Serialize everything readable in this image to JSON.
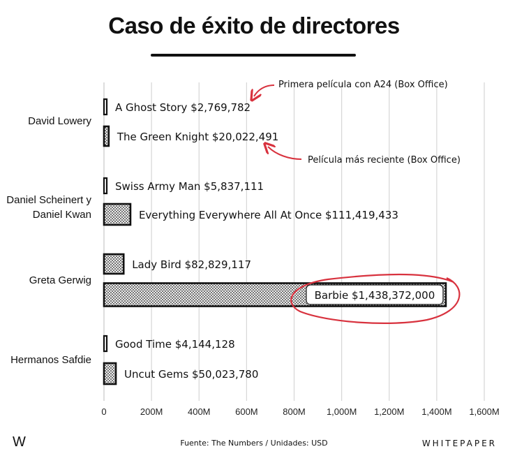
{
  "header": {
    "title": "Caso de éxito de directores"
  },
  "chart_data": {
    "type": "bar",
    "orientation": "horizontal",
    "groups": [
      "David Lowery",
      "Daniel Scheinert y Daniel Kwan",
      "Greta Gerwig",
      "Hermanos Safdie"
    ],
    "bars": [
      {
        "group": "David Lowery",
        "film": "A Ghost Story",
        "value": 2769782,
        "label": "A Ghost Story  $2,769,782"
      },
      {
        "group": "David Lowery",
        "film": "The Green Knight",
        "value": 20022491,
        "label": "The Green Knight  $20,022,491"
      },
      {
        "group": "Daniel Scheinert y Daniel Kwan",
        "film": "Swiss Army Man",
        "value": 5837111,
        "label": "Swiss Army Man  $5,837,111"
      },
      {
        "group": "Daniel Scheinert y Daniel Kwan",
        "film": "Everything Everywhere All At Once",
        "value": 111419433,
        "label": "Everything Everywhere All At Once  $111,419,433"
      },
      {
        "group": "Greta Gerwig",
        "film": "Lady Bird",
        "value": 82829117,
        "label": "Lady Bird  $82,829,117"
      },
      {
        "group": "Greta Gerwig",
        "film": "Barbie",
        "value": 1438372000,
        "label": "Barbie  $1,438,372,000"
      },
      {
        "group": "Hermanos Safdie",
        "film": "Good Time",
        "value": 4144128,
        "label": "Good Time  $4,144,128"
      },
      {
        "group": "Hermanos Safdie",
        "film": "Uncut Gems",
        "value": 50023780,
        "label": "Uncut Gems  $50,023,780"
      }
    ],
    "xlim": [
      0,
      1600000000
    ],
    "xticks": [
      0,
      200000000,
      400000000,
      600000000,
      800000000,
      1000000000,
      1200000000,
      1400000000,
      1600000000
    ],
    "xtick_labels": [
      "0",
      "200M",
      "400M",
      "600M",
      "800M",
      "1,000M",
      "1,200M",
      "1,400M",
      "1,600M"
    ],
    "grid": "vertical",
    "annotations": [
      {
        "text": "Primera película con A24 (Box Office)",
        "target": "A Ghost Story"
      },
      {
        "text": "Película más reciente (Box Office)",
        "target": "The Green Knight"
      }
    ],
    "highlight": "Barbie",
    "colors": {
      "bar_fill": "#d9d9d9",
      "bar_stroke": "#111111",
      "accent": "#d8323e",
      "grid": "#d6d6d6"
    }
  },
  "footer": {
    "logo": "W",
    "source": "Fuente: The Numbers  /  Unidades: USD",
    "brand": "WHITEPAPER"
  }
}
